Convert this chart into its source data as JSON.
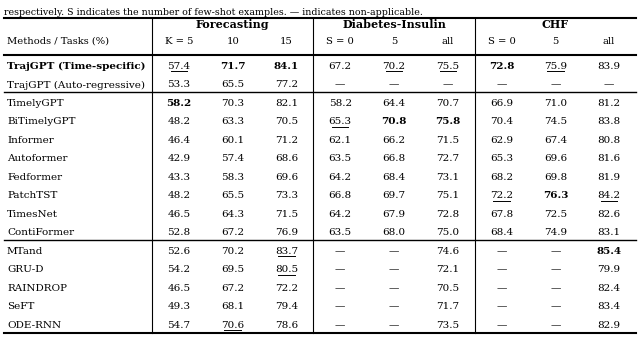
{
  "caption": "respectively. S indicates the number of few-shot examples. — indicates non-applicable.",
  "col_headers": [
    "Methods / Tasks (%)",
    "K = 5",
    "10",
    "15",
    "S = 0",
    "5",
    "all",
    "S = 0",
    "5",
    "all"
  ],
  "group_labels": [
    "Forecasting",
    "Diabetes-Insulin",
    "CHF"
  ],
  "rows": [
    {
      "group": 0,
      "method": "TrajGPT (Time-specific)",
      "bold_method": true,
      "values": [
        "57.4",
        "71.7",
        "84.1",
        "67.2",
        "70.2",
        "75.5",
        "72.8",
        "75.9",
        "83.9"
      ],
      "underline": [
        true,
        false,
        false,
        false,
        true,
        true,
        false,
        true,
        false
      ],
      "bold": [
        false,
        true,
        true,
        false,
        false,
        false,
        true,
        false,
        false
      ]
    },
    {
      "group": 0,
      "method": "TrajGPT (Auto-regressive)",
      "bold_method": false,
      "values": [
        "53.3",
        "65.5",
        "77.2",
        "—",
        "—",
        "—",
        "—",
        "—",
        "—"
      ],
      "underline": [
        false,
        false,
        false,
        false,
        false,
        false,
        false,
        false,
        false
      ],
      "bold": [
        false,
        false,
        false,
        false,
        false,
        false,
        false,
        false,
        false
      ]
    },
    {
      "group": 1,
      "method": "TimelyGPT",
      "bold_method": false,
      "values": [
        "58.2",
        "70.3",
        "82.1",
        "58.2",
        "64.4",
        "70.7",
        "66.9",
        "71.0",
        "81.2"
      ],
      "underline": [
        false,
        false,
        false,
        false,
        false,
        false,
        false,
        false,
        false
      ],
      "bold": [
        true,
        false,
        false,
        false,
        false,
        false,
        false,
        false,
        false
      ]
    },
    {
      "group": 1,
      "method": "BiTimelyGPT",
      "bold_method": false,
      "values": [
        "48.2",
        "63.3",
        "70.5",
        "65.3",
        "70.8",
        "75.8",
        "70.4",
        "74.5",
        "83.8"
      ],
      "underline": [
        false,
        false,
        false,
        true,
        false,
        false,
        false,
        false,
        false
      ],
      "bold": [
        false,
        false,
        false,
        false,
        true,
        true,
        false,
        false,
        false
      ]
    },
    {
      "group": 1,
      "method": "Informer",
      "bold_method": false,
      "values": [
        "46.4",
        "60.1",
        "71.2",
        "62.1",
        "66.2",
        "71.5",
        "62.9",
        "67.4",
        "80.8"
      ],
      "underline": [
        false,
        false,
        false,
        false,
        false,
        false,
        false,
        false,
        false
      ],
      "bold": [
        false,
        false,
        false,
        false,
        false,
        false,
        false,
        false,
        false
      ]
    },
    {
      "group": 1,
      "method": "Autoformer",
      "bold_method": false,
      "values": [
        "42.9",
        "57.4",
        "68.6",
        "63.5",
        "66.8",
        "72.7",
        "65.3",
        "69.6",
        "81.6"
      ],
      "underline": [
        false,
        false,
        false,
        false,
        false,
        false,
        false,
        false,
        false
      ],
      "bold": [
        false,
        false,
        false,
        false,
        false,
        false,
        false,
        false,
        false
      ]
    },
    {
      "group": 1,
      "method": "Fedformer",
      "bold_method": false,
      "values": [
        "43.3",
        "58.3",
        "69.6",
        "64.2",
        "68.4",
        "73.1",
        "68.2",
        "69.8",
        "81.9"
      ],
      "underline": [
        false,
        false,
        false,
        false,
        false,
        false,
        false,
        false,
        false
      ],
      "bold": [
        false,
        false,
        false,
        false,
        false,
        false,
        false,
        false,
        false
      ]
    },
    {
      "group": 1,
      "method": "PatchTST",
      "bold_method": false,
      "values": [
        "48.2",
        "65.5",
        "73.3",
        "66.8",
        "69.7",
        "75.1",
        "72.2",
        "76.3",
        "84.2"
      ],
      "underline": [
        false,
        false,
        false,
        false,
        false,
        false,
        true,
        false,
        true
      ],
      "bold": [
        false,
        false,
        false,
        false,
        false,
        false,
        false,
        true,
        false
      ]
    },
    {
      "group": 1,
      "method": "TimesNet",
      "bold_method": false,
      "values": [
        "46.5",
        "64.3",
        "71.5",
        "64.2",
        "67.9",
        "72.8",
        "67.8",
        "72.5",
        "82.6"
      ],
      "underline": [
        false,
        false,
        false,
        false,
        false,
        false,
        false,
        false,
        false
      ],
      "bold": [
        false,
        false,
        false,
        false,
        false,
        false,
        false,
        false,
        false
      ]
    },
    {
      "group": 1,
      "method": "ContiFormer",
      "bold_method": false,
      "values": [
        "52.8",
        "67.2",
        "76.9",
        "63.5",
        "68.0",
        "75.0",
        "68.4",
        "74.9",
        "83.1"
      ],
      "underline": [
        false,
        false,
        false,
        false,
        false,
        false,
        false,
        false,
        false
      ],
      "bold": [
        false,
        false,
        false,
        false,
        false,
        false,
        false,
        false,
        false
      ]
    },
    {
      "group": 2,
      "method": "MTand",
      "bold_method": false,
      "values": [
        "52.6",
        "70.2",
        "83.7",
        "—",
        "—",
        "74.6",
        "—",
        "—",
        "85.4"
      ],
      "underline": [
        false,
        false,
        true,
        false,
        false,
        false,
        false,
        false,
        false
      ],
      "bold": [
        false,
        false,
        false,
        false,
        false,
        false,
        false,
        false,
        true
      ]
    },
    {
      "group": 2,
      "method": "GRU-D",
      "bold_method": false,
      "values": [
        "54.2",
        "69.5",
        "80.5",
        "—",
        "—",
        "72.1",
        "—",
        "—",
        "79.9"
      ],
      "underline": [
        false,
        false,
        true,
        false,
        false,
        false,
        false,
        false,
        false
      ],
      "bold": [
        false,
        false,
        false,
        false,
        false,
        false,
        false,
        false,
        false
      ]
    },
    {
      "group": 2,
      "method": "RAINDROP",
      "bold_method": false,
      "values": [
        "46.5",
        "67.2",
        "72.2",
        "—",
        "—",
        "70.5",
        "—",
        "—",
        "82.4"
      ],
      "underline": [
        false,
        false,
        false,
        false,
        false,
        false,
        false,
        false,
        false
      ],
      "bold": [
        false,
        false,
        false,
        false,
        false,
        false,
        false,
        false,
        false
      ]
    },
    {
      "group": 2,
      "method": "SeFT",
      "bold_method": false,
      "values": [
        "49.3",
        "68.1",
        "79.4",
        "—",
        "—",
        "71.7",
        "—",
        "—",
        "83.4"
      ],
      "underline": [
        false,
        false,
        false,
        false,
        false,
        false,
        false,
        false,
        false
      ],
      "bold": [
        false,
        false,
        false,
        false,
        false,
        false,
        false,
        false,
        false
      ]
    },
    {
      "group": 2,
      "method": "ODE-RNN",
      "bold_method": false,
      "values": [
        "54.7",
        "70.6",
        "78.6",
        "—",
        "—",
        "73.5",
        "—",
        "—",
        "82.9"
      ],
      "underline": [
        false,
        true,
        false,
        false,
        false,
        false,
        false,
        false,
        false
      ],
      "bold": [
        false,
        false,
        false,
        false,
        false,
        false,
        false,
        false,
        false
      ]
    }
  ]
}
